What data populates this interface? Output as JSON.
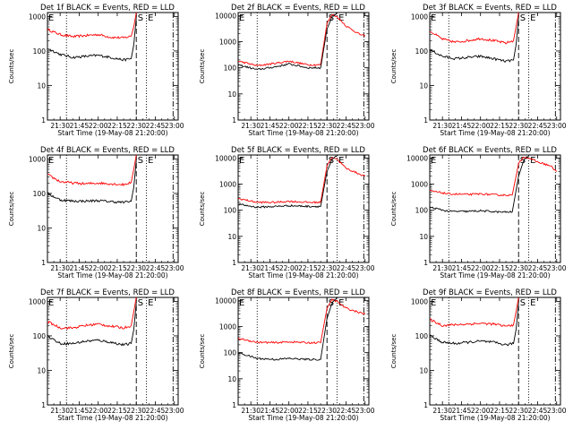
{
  "colors": {
    "events": "#000000",
    "lld": "#ff0000",
    "axis": "#000000",
    "background": "#ffffff"
  },
  "chart_data": [
    {
      "type": "line",
      "title": "Det 1f BLACK = Events, RED = LLD",
      "xlabel": "Start Time (19-May-08 21:20:00)",
      "ylabel": "Counts/sec",
      "x_ticks": [
        "21:30",
        "21:45",
        "22:00",
        "22:15",
        "22:30",
        "22:45",
        "23:00"
      ],
      "y_ticks": [
        "1",
        "10",
        "100",
        "1000"
      ],
      "xlim": [
        "21:20",
        "23:03"
      ],
      "ylim": [
        1,
        1300
      ],
      "y_scale": "log",
      "markers": [
        {
          "label": "",
          "time": "21:35",
          "style": "dotted"
        },
        {
          "label": "S",
          "time": "22:30",
          "style": "dashed"
        },
        {
          "label": "E",
          "time": "22:38",
          "style": "dotted"
        },
        {
          "label": "",
          "time": "22:59",
          "style": "dash-dot"
        }
      ],
      "series": [
        {
          "color": "lld",
          "x": [
            "21:20",
            "21:30",
            "21:40",
            "21:50",
            "22:00",
            "22:10",
            "22:20",
            "22:26",
            "22:28",
            "22:30"
          ],
          "values": [
            420,
            300,
            260,
            280,
            300,
            250,
            240,
            270,
            500,
            1300
          ]
        },
        {
          "color": "events",
          "x": [
            "21:20",
            "21:30",
            "21:40",
            "21:50",
            "22:00",
            "22:10",
            "22:20",
            "22:26",
            "22:28",
            "22:30"
          ],
          "values": [
            120,
            80,
            65,
            70,
            75,
            65,
            55,
            60,
            150,
            900
          ]
        }
      ]
    },
    {
      "type": "line",
      "title": "Det 2f BLACK = Events, RED = LLD",
      "xlabel": "Start Time (19-May-08 21:20:00)",
      "ylabel": "Counts/sec",
      "x_ticks": [
        "21:30",
        "21:45",
        "22:00",
        "22:15",
        "22:30",
        "22:45",
        "23:00"
      ],
      "y_ticks": [
        "1",
        "10",
        "100",
        "1000",
        "10000"
      ],
      "xlim": [
        "21:20",
        "23:03"
      ],
      "ylim": [
        1,
        13000
      ],
      "y_scale": "log",
      "markers": [
        {
          "label": "",
          "time": "21:35",
          "style": "dotted"
        },
        {
          "label": "S",
          "time": "22:30",
          "style": "dashed"
        },
        {
          "label": "E",
          "time": "22:38",
          "style": "dotted"
        },
        {
          "label": "",
          "time": "22:59",
          "style": "dash-dot"
        }
      ],
      "series": [
        {
          "color": "lld",
          "x": [
            "21:20",
            "21:35",
            "21:50",
            "22:00",
            "22:15",
            "22:25",
            "22:30",
            "22:34",
            "22:38",
            "22:45",
            "22:55",
            "23:00"
          ],
          "values": [
            180,
            120,
            150,
            180,
            130,
            130,
            5000,
            11000,
            9000,
            4000,
            2000,
            1600
          ]
        },
        {
          "color": "events",
          "x": [
            "21:20",
            "21:35",
            "21:50",
            "22:00",
            "22:15",
            "22:25",
            "22:30",
            "22:34",
            "22:38"
          ],
          "values": [
            130,
            85,
            110,
            140,
            100,
            100,
            3000,
            9000,
            12000
          ]
        }
      ]
    },
    {
      "type": "line",
      "title": "Det 3f BLACK = Events, RED = LLD",
      "xlabel": "Start Time (19-May-08 21:20:00)",
      "ylabel": "Counts/sec",
      "x_ticks": [
        "21:30",
        "21:45",
        "22:00",
        "22:15",
        "22:30",
        "22:45",
        "23:00"
      ],
      "y_ticks": [
        "1",
        "10",
        "100",
        "1000"
      ],
      "xlim": [
        "21:20",
        "23:03"
      ],
      "ylim": [
        1,
        1300
      ],
      "y_scale": "log",
      "markers": [
        {
          "label": "",
          "time": "21:35",
          "style": "dotted"
        },
        {
          "label": "S",
          "time": "22:30",
          "style": "dashed"
        },
        {
          "label": "E",
          "time": "22:38",
          "style": "dotted"
        },
        {
          "label": "",
          "time": "22:59",
          "style": "dash-dot"
        }
      ],
      "series": [
        {
          "color": "lld",
          "x": [
            "21:20",
            "21:30",
            "21:40",
            "21:50",
            "22:00",
            "22:10",
            "22:20",
            "22:26",
            "22:28",
            "22:30"
          ],
          "values": [
            380,
            220,
            180,
            200,
            230,
            200,
            170,
            200,
            500,
            1300
          ]
        },
        {
          "color": "events",
          "x": [
            "21:20",
            "21:30",
            "21:40",
            "21:50",
            "22:00",
            "22:10",
            "22:20",
            "22:26",
            "22:28",
            "22:30"
          ],
          "values": [
            110,
            70,
            60,
            65,
            70,
            60,
            50,
            55,
            150,
            900
          ]
        }
      ]
    },
    {
      "type": "line",
      "title": "Det 4f BLACK = Events, RED = LLD",
      "xlabel": "Start Time (19-May-08 21:20:00)",
      "ylabel": "Counts/sec",
      "x_ticks": [
        "21:30",
        "21:45",
        "22:00",
        "22:15",
        "22:30",
        "22:45",
        "23:00"
      ],
      "y_ticks": [
        "1",
        "10",
        "100",
        "1000"
      ],
      "xlim": [
        "21:20",
        "23:03"
      ],
      "ylim": [
        1,
        1300
      ],
      "y_scale": "log",
      "markers": [
        {
          "label": "",
          "time": "21:35",
          "style": "dotted"
        },
        {
          "label": "S",
          "time": "22:30",
          "style": "dashed"
        },
        {
          "label": "E",
          "time": "22:38",
          "style": "dotted"
        },
        {
          "label": "",
          "time": "22:59",
          "style": "dash-dot"
        }
      ],
      "series": [
        {
          "color": "lld",
          "x": [
            "21:20",
            "21:30",
            "21:40",
            "21:50",
            "22:00",
            "22:10",
            "22:20",
            "22:26",
            "22:28",
            "22:30"
          ],
          "values": [
            350,
            220,
            200,
            190,
            200,
            190,
            180,
            210,
            500,
            1300
          ]
        },
        {
          "color": "events",
          "x": [
            "21:20",
            "21:30",
            "21:40",
            "21:50",
            "22:00",
            "22:10",
            "22:20",
            "22:26",
            "22:28",
            "22:30"
          ],
          "values": [
            100,
            65,
            60,
            60,
            62,
            58,
            55,
            60,
            150,
            900
          ]
        }
      ]
    },
    {
      "type": "line",
      "title": "Det 5f BLACK = Events, RED = LLD",
      "xlabel": "Start Time (19-May-08 21:20:00)",
      "ylabel": "Counts/sec",
      "x_ticks": [
        "21:30",
        "21:45",
        "22:00",
        "22:15",
        "22:30",
        "22:45",
        "23:00"
      ],
      "y_ticks": [
        "1",
        "10",
        "100",
        "1000",
        "10000"
      ],
      "xlim": [
        "21:20",
        "23:03"
      ],
      "ylim": [
        1,
        13000
      ],
      "y_scale": "log",
      "markers": [
        {
          "label": "",
          "time": "21:35",
          "style": "dotted"
        },
        {
          "label": "S",
          "time": "22:30",
          "style": "dashed"
        },
        {
          "label": "E",
          "time": "22:38",
          "style": "dotted"
        },
        {
          "label": "",
          "time": "22:59",
          "style": "dash-dot"
        }
      ],
      "series": [
        {
          "color": "lld",
          "x": [
            "21:20",
            "21:35",
            "21:50",
            "22:00",
            "22:15",
            "22:25",
            "22:30",
            "22:34",
            "22:38",
            "22:45",
            "22:55",
            "23:00"
          ],
          "values": [
            280,
            200,
            200,
            220,
            200,
            200,
            5000,
            11000,
            9000,
            4000,
            2500,
            2000
          ]
        },
        {
          "color": "events",
          "x": [
            "21:20",
            "21:35",
            "21:50",
            "22:00",
            "22:15",
            "22:25",
            "22:30",
            "22:34",
            "22:38"
          ],
          "values": [
            170,
            130,
            140,
            150,
            140,
            140,
            3000,
            9000,
            12000
          ]
        }
      ]
    },
    {
      "type": "line",
      "title": "Det 6f BLACK = Events, RED = LLD",
      "xlabel": "Start Time (19-May-08 21:20:00)",
      "ylabel": "Counts/sec",
      "x_ticks": [
        "21:30",
        "21:45",
        "22:00",
        "22:15",
        "22:30",
        "22:45",
        "23:00"
      ],
      "y_ticks": [
        "1",
        "10",
        "100",
        "1000",
        "10000"
      ],
      "xlim": [
        "21:20",
        "23:03"
      ],
      "ylim": [
        1,
        13000
      ],
      "y_scale": "log",
      "markers": [
        {
          "label": "",
          "time": "21:35",
          "style": "dotted"
        },
        {
          "label": "S",
          "time": "22:30",
          "style": "dashed"
        },
        {
          "label": "E",
          "time": "22:38",
          "style": "dotted"
        },
        {
          "label": "",
          "time": "22:59",
          "style": "dash-dot"
        }
      ],
      "series": [
        {
          "color": "lld",
          "x": [
            "21:20",
            "21:35",
            "21:50",
            "22:00",
            "22:15",
            "22:25",
            "22:30",
            "22:34",
            "22:38",
            "22:45",
            "22:55",
            "23:00"
          ],
          "values": [
            550,
            420,
            400,
            420,
            380,
            380,
            6000,
            11000,
            10000,
            7000,
            5000,
            3000
          ]
        },
        {
          "color": "events",
          "x": [
            "21:20",
            "21:35",
            "21:50",
            "22:00",
            "22:15",
            "22:25",
            "22:30",
            "22:34",
            "22:38"
          ],
          "values": [
            130,
            90,
            90,
            95,
            85,
            85,
            2000,
            8000,
            12000
          ]
        }
      ]
    },
    {
      "type": "line",
      "title": "Det 7f BLACK = Events, RED = LLD",
      "xlabel": "Start Time (19-May-08 21:20:00)",
      "ylabel": "Counts/sec",
      "x_ticks": [
        "21:30",
        "21:45",
        "22:00",
        "22:15",
        "22:30",
        "22:45",
        "23:00"
      ],
      "y_ticks": [
        "1",
        "10",
        "100",
        "1000"
      ],
      "xlim": [
        "21:20",
        "23:03"
      ],
      "ylim": [
        1,
        1300
      ],
      "y_scale": "log",
      "markers": [
        {
          "label": "",
          "time": "21:35",
          "style": "dotted"
        },
        {
          "label": "S",
          "time": "22:30",
          "style": "dashed"
        },
        {
          "label": "E",
          "time": "22:38",
          "style": "dotted"
        },
        {
          "label": "",
          "time": "22:59",
          "style": "dash-dot"
        }
      ],
      "series": [
        {
          "color": "lld",
          "x": [
            "21:20",
            "21:30",
            "21:40",
            "21:50",
            "22:00",
            "22:10",
            "22:20",
            "22:26",
            "22:28",
            "22:30"
          ],
          "values": [
            260,
            170,
            170,
            200,
            220,
            190,
            170,
            200,
            500,
            1300
          ]
        },
        {
          "color": "events",
          "x": [
            "21:20",
            "21:30",
            "21:40",
            "21:50",
            "22:00",
            "22:10",
            "22:20",
            "22:26",
            "22:28",
            "22:30"
          ],
          "values": [
            100,
            60,
            60,
            70,
            75,
            65,
            55,
            60,
            150,
            900
          ]
        }
      ]
    },
    {
      "type": "line",
      "title": "Det 8f BLACK = Events, RED = LLD",
      "xlabel": "Start Time (19-May-08 21:20:00)",
      "ylabel": "Counts/sec",
      "x_ticks": [
        "21:30",
        "21:45",
        "22:00",
        "22:15",
        "22:30",
        "22:45",
        "23:00"
      ],
      "y_ticks": [
        "1",
        "10",
        "100",
        "1000",
        "10000"
      ],
      "xlim": [
        "21:20",
        "23:03"
      ],
      "ylim": [
        1,
        13000
      ],
      "y_scale": "log",
      "markers": [
        {
          "label": "",
          "time": "21:35",
          "style": "dotted"
        },
        {
          "label": "S",
          "time": "22:30",
          "style": "dashed"
        },
        {
          "label": "E",
          "time": "22:38",
          "style": "dotted"
        },
        {
          "label": "",
          "time": "22:59",
          "style": "dash-dot"
        }
      ],
      "series": [
        {
          "color": "lld",
          "x": [
            "21:20",
            "21:35",
            "21:50",
            "22:00",
            "22:15",
            "22:25",
            "22:30",
            "22:34",
            "22:38",
            "22:45",
            "22:55",
            "23:00"
          ],
          "values": [
            350,
            250,
            240,
            260,
            240,
            240,
            5000,
            11000,
            9000,
            5000,
            3500,
            3000
          ]
        },
        {
          "color": "events",
          "x": [
            "21:20",
            "21:35",
            "21:50",
            "22:00",
            "22:15",
            "22:25",
            "22:30",
            "22:34",
            "22:38"
          ],
          "values": [
            100,
            60,
            55,
            60,
            55,
            55,
            2000,
            8000,
            12000
          ]
        }
      ]
    },
    {
      "type": "line",
      "title": "Det 9f BLACK = Events, RED = LLD",
      "xlabel": "Start Time (19-May-08 21:20:00)",
      "ylabel": "Counts/sec",
      "x_ticks": [
        "21:30",
        "21:45",
        "22:00",
        "22:15",
        "22:30",
        "22:45",
        "23:00"
      ],
      "y_ticks": [
        "1",
        "10",
        "100",
        "1000"
      ],
      "xlim": [
        "21:20",
        "23:03"
      ],
      "ylim": [
        1,
        1300
      ],
      "y_scale": "log",
      "markers": [
        {
          "label": "",
          "time": "21:35",
          "style": "dotted"
        },
        {
          "label": "S",
          "time": "22:30",
          "style": "dashed"
        },
        {
          "label": "E",
          "time": "22:38",
          "style": "dotted"
        },
        {
          "label": "",
          "time": "22:59",
          "style": "dash-dot"
        }
      ],
      "series": [
        {
          "color": "lld",
          "x": [
            "21:20",
            "21:30",
            "21:40",
            "21:50",
            "22:00",
            "22:10",
            "22:20",
            "22:26",
            "22:28",
            "22:30"
          ],
          "values": [
            300,
            200,
            210,
            220,
            230,
            220,
            190,
            210,
            500,
            1300
          ]
        },
        {
          "color": "events",
          "x": [
            "21:20",
            "21:30",
            "21:40",
            "21:50",
            "22:00",
            "22:10",
            "22:20",
            "22:26",
            "22:28",
            "22:30"
          ],
          "values": [
            100,
            65,
            60,
            65,
            70,
            65,
            55,
            60,
            150,
            900
          ]
        }
      ]
    }
  ]
}
